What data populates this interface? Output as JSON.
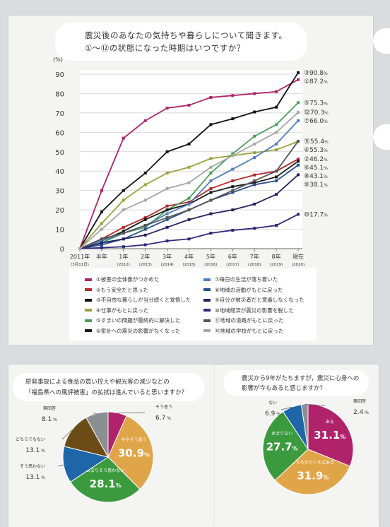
{
  "question1": {
    "line1": "震災後のあなたの気持ちや暮らしについて聞きます。",
    "line2": "①～⑫の状態になった時期はいつですか？"
  },
  "chart_data": [
    {
      "type": "line",
      "ylabel": "(%)",
      "ylim": [
        0,
        90
      ],
      "yticks": [
        0,
        10,
        20,
        30,
        40,
        50,
        60,
        70,
        80,
        90
      ],
      "categories": [
        "2011年",
        "半年",
        "1年",
        "2年",
        "3年",
        "4年",
        "5年",
        "6年",
        "7年",
        "8年",
        "現在"
      ],
      "category_sublabels": [
        "(3月11日)",
        "",
        "(2012)",
        "(2013)",
        "(2014)",
        "(2015)",
        "(2016)",
        "(2017)",
        "(2018)",
        "(2019)",
        "(2020)"
      ],
      "grid": true,
      "series": [
        {
          "name": "被害の全体像がつかめた",
          "marker": "①",
          "color": "#b0226a",
          "end_label": "87.2",
          "values": [
            0,
            30,
            57,
            66,
            72.5,
            74,
            78,
            79,
            80,
            81,
            87.2
          ]
        },
        {
          "name": "もう安全だと思った",
          "marker": "②",
          "color": "#b3282d",
          "end_label": "46.2",
          "values": [
            0,
            5,
            11,
            16,
            22,
            24,
            31,
            35,
            38,
            40,
            46.2
          ]
        },
        {
          "name": "不自由な暮らしが当分続くと覚悟した",
          "marker": "③",
          "color": "#111111",
          "end_label": "90.8",
          "values": [
            0,
            19,
            30,
            39,
            50,
            54,
            64,
            67,
            70.5,
            73,
            90.8
          ]
        },
        {
          "name": "仕事がもとに戻った",
          "marker": "④",
          "color": "#9aa23c",
          "end_label": "55.3",
          "values": [
            0,
            13,
            25,
            33,
            39,
            42,
            46.5,
            48,
            49.5,
            51,
            55.3
          ]
        },
        {
          "name": "すまいの問題が最終的に解決した",
          "marker": "⑤",
          "color": "#4aa05a",
          "end_label": "75.3",
          "values": [
            0,
            3,
            8,
            11,
            20,
            26,
            39,
            49,
            58,
            64,
            75.3
          ]
        },
        {
          "name": "家計への震災の影響がなくなった",
          "marker": "⑥",
          "color": "#1a1a1a",
          "end_label": "45.1",
          "values": [
            0,
            4,
            9,
            15,
            20,
            23,
            29,
            32,
            34,
            37,
            45.1
          ]
        },
        {
          "name": "毎日の生活が落ち着いた",
          "marker": "⑦",
          "color": "#4f7dbf",
          "end_label": "66.0",
          "values": [
            0,
            4,
            8,
            12,
            18,
            23,
            35,
            41,
            47,
            54,
            66.0
          ]
        },
        {
          "name": "地域の活動がもとに戻った",
          "marker": "⑧",
          "color": "#2b4f8f",
          "end_label": "43.1",
          "values": [
            0,
            2,
            5,
            10,
            15,
            20,
            25,
            29,
            33,
            35,
            43.1
          ]
        },
        {
          "name": "自分が被災者だと意識しなくなった",
          "marker": "⑨",
          "color": "#23235e",
          "end_label": "38.1",
          "values": [
            0,
            3,
            5,
            7,
            11,
            15,
            18,
            20,
            23,
            28,
            38.1
          ]
        },
        {
          "name": "地域経済が震災の影響を脱した",
          "marker": "⑩",
          "color": "#2e2a7a",
          "end_label": "17.7",
          "values": [
            0,
            0.5,
            1,
            2,
            4,
            5,
            8,
            9.5,
            10.5,
            12,
            17.7
          ]
        },
        {
          "name": "地域の道路がもとに戻った",
          "marker": "⑪",
          "color": "#555555",
          "end_label": "55.4",
          "values": [
            0,
            5,
            8,
            12,
            16,
            20,
            25,
            30,
            35,
            40,
            55.4
          ]
        },
        {
          "name": "地域の学校がもとに戻った",
          "marker": "⑫",
          "color": "#a6a6a6",
          "end_label": "70.3",
          "values": [
            0,
            10,
            20,
            25,
            31,
            34,
            42,
            48,
            54,
            60,
            70.3
          ]
        }
      ],
      "end_label_unit": "%"
    },
    {
      "type": "pie",
      "categories": [
        "そう思う",
        "ややそう思う",
        "あまりそう思わない",
        "そう思わない",
        "どちらでもない",
        "無回答"
      ],
      "values": [
        6.7,
        30.9,
        28.1,
        13.1,
        13.1,
        8.1
      ],
      "colors": [
        "#b0226a",
        "#e1a549",
        "#3c9a3e",
        "#1f66a8",
        "#6b4c17",
        "#8a8f94"
      ],
      "value_labels": [
        "6.7",
        "30.9",
        "28.1",
        "13.1",
        "13.1",
        "8.1"
      ],
      "unit": "%"
    },
    {
      "type": "pie",
      "categories": [
        "ある",
        "どちらかといえばある",
        "あまりない",
        "ない",
        "無回答"
      ],
      "values": [
        31.1,
        31.9,
        27.7,
        6.9,
        2.4
      ],
      "colors": [
        "#b0226a",
        "#e1a549",
        "#3c9a3e",
        "#1f66a8",
        "#8a8f94"
      ],
      "value_labels": [
        "31.1",
        "31.9",
        "27.7",
        "6.9",
        "2.4"
      ],
      "unit": "%"
    }
  ],
  "question2": {
    "line1": "原発事故による食品の買い控えや観光客の減少などの",
    "line2": "「福島県への風評被害」の払拭は進んでいると思いますか？"
  },
  "question3": {
    "line1": "震災から9年がたちますが，震災に心身への",
    "line2": "影響が今もあると感じますか？"
  }
}
